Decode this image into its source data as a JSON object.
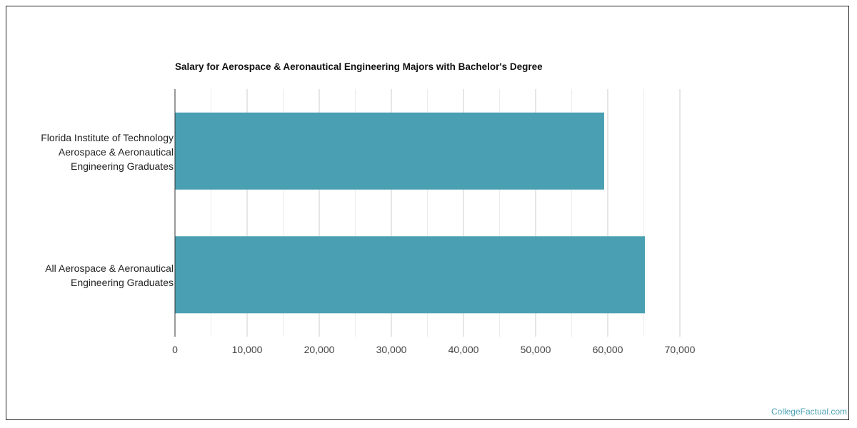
{
  "chart_data": {
    "type": "bar",
    "orientation": "horizontal",
    "title": "Salary for Aerospace & Aeronautical Engineering Majors with Bachelor's Degree",
    "categories": [
      [
        "Florida Institute of Technology",
        "Aerospace & Aeronautical",
        "Engineering Graduates"
      ],
      [
        "All Aerospace & Aeronautical",
        "Engineering Graduates"
      ]
    ],
    "values": [
      59500,
      65150
    ],
    "xlim": [
      0,
      70000
    ],
    "xticks": [
      0,
      10000,
      20000,
      30000,
      40000,
      50000,
      60000,
      70000
    ],
    "xtick_labels": [
      "0",
      "10,000",
      "20,000",
      "30,000",
      "40,000",
      "50,000",
      "60,000",
      "70,000"
    ],
    "minor_grid_step": 5000,
    "grid": true,
    "bar_color": "#4aa0b2",
    "xlabel": "",
    "ylabel": ""
  },
  "credit": "CollegeFactual.com"
}
